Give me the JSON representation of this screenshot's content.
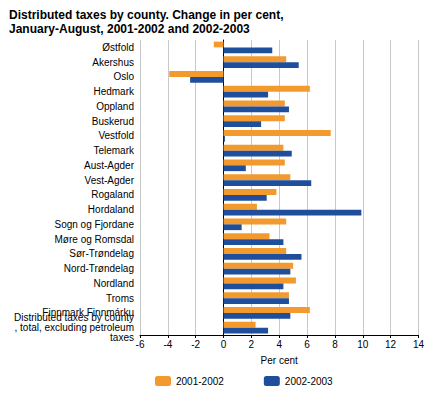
{
  "chart_data": {
    "type": "bar",
    "orientation": "horizontal",
    "title": "Distributed taxes by county. Change in per cent, January-August, 2001-2002 and 2002-2003",
    "xlabel": "Per cent",
    "categories": [
      "Østfold",
      "Akershus",
      "Oslo",
      "Hedmark",
      "Oppland",
      "Buskerud",
      "Vestfold",
      "Telemark",
      "Aust-Agder",
      "Vest-Agder",
      "Rogaland",
      "Hordaland",
      "Sogn og Fjordane",
      "Møre og Romsdal",
      "Sør-Trøndelag",
      "Nord-Trøndelag",
      "Nordland",
      "Troms",
      "Finnmark Finnmárku",
      "Distributed taxes by county, total, excluding petroleum taxes"
    ],
    "series": [
      {
        "name": "2001-2002",
        "color": "#f39a2e",
        "values": [
          -0.7,
          4.5,
          -3.9,
          6.2,
          4.4,
          4.4,
          7.7,
          4.3,
          4.4,
          4.8,
          3.8,
          2.4,
          4.5,
          3.3,
          4.5,
          5.0,
          5.2,
          4.7,
          6.2,
          2.3
        ]
      },
      {
        "name": "2002-2003",
        "color": "#1f4e9c",
        "values": [
          3.5,
          5.4,
          -2.4,
          3.2,
          4.7,
          2.7,
          0.1,
          4.9,
          1.6,
          6.3,
          3.1,
          9.9,
          1.3,
          4.3,
          5.6,
          4.8,
          4.3,
          4.7,
          4.8,
          3.2
        ]
      }
    ],
    "xlim": [
      -6,
      14
    ],
    "xticks": [
      -6,
      -4,
      -2,
      0,
      2,
      4,
      6,
      8,
      10,
      12,
      14
    ],
    "grid": true,
    "legend": "bottom"
  }
}
